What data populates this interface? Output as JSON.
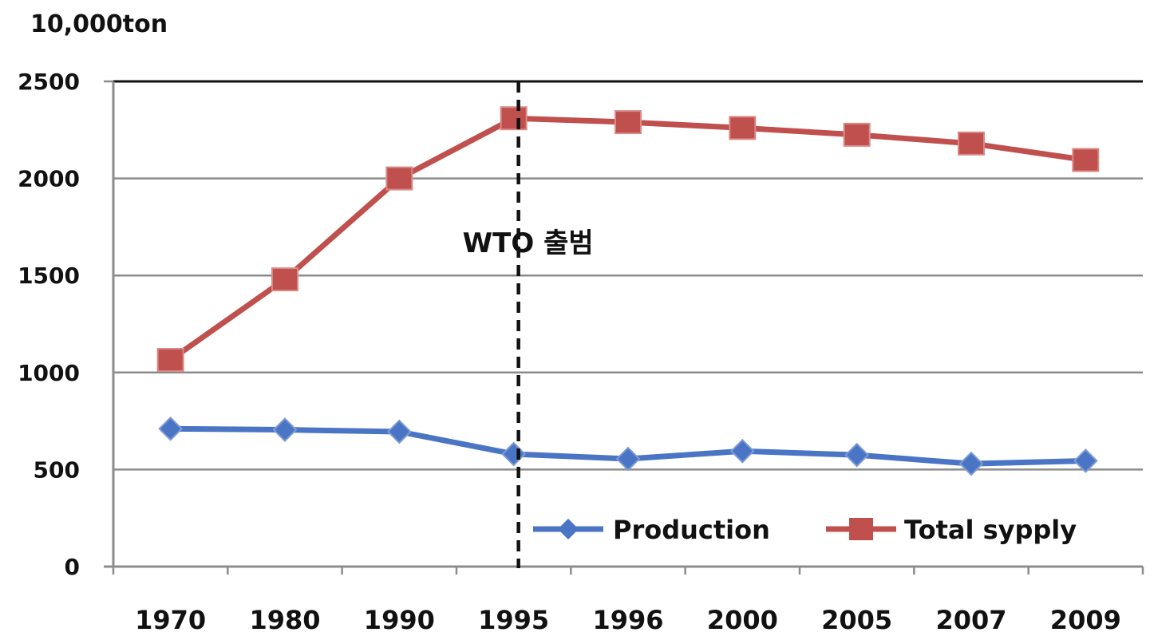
{
  "chart_data": {
    "type": "line",
    "unit_label": "10,000ton",
    "categories": [
      "1970",
      "1980",
      "1990",
      "1995",
      "1996",
      "2000",
      "2005",
      "2007",
      "2009"
    ],
    "ylim": [
      0,
      2500
    ],
    "yticks": [
      0,
      500,
      1000,
      1500,
      2000,
      2500
    ],
    "grid": true,
    "legend_position": "bottom-right",
    "series": [
      {
        "name": "Production",
        "color": "#4a74c4",
        "marker": "diamond",
        "values": [
          710,
          705,
          695,
          580,
          555,
          595,
          575,
          530,
          545
        ]
      },
      {
        "name": "Total sypply",
        "color": "#c0504d",
        "marker": "square",
        "values": [
          1065,
          1480,
          2000,
          2310,
          2290,
          2260,
          2225,
          2180,
          2095
        ]
      }
    ],
    "annotations": [
      {
        "text": "WTO 출범",
        "x_category": "1995",
        "style": "dashed-vertical-line"
      }
    ]
  }
}
